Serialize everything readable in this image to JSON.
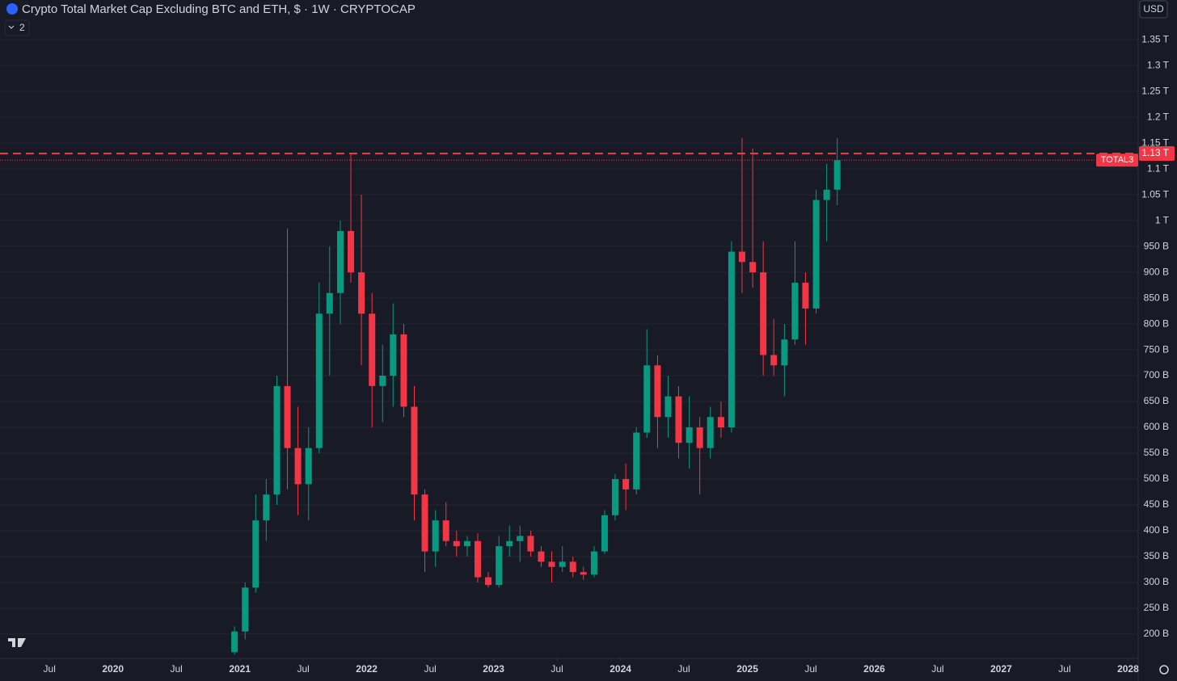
{
  "chart_data": {
    "type": "candlestick",
    "title": "Crypto Total Market Cap Excluding BTC and ETH, $ · 1W · CRYPTOCAP",
    "currency": "USD",
    "collapsed_count": 2,
    "symbol": "TOTAL3",
    "up_color": "#089981",
    "down_color": "#f23645",
    "x": [
      2020.958,
      2021.042,
      2021.125,
      2021.208,
      2021.292,
      2021.375,
      2021.458,
      2021.542,
      2021.625,
      2021.708,
      2021.792,
      2021.875,
      2021.958,
      2022.042,
      2022.125,
      2022.208,
      2022.292,
      2022.375,
      2022.458,
      2022.542,
      2022.625,
      2022.708,
      2022.792,
      2022.875,
      2022.958,
      2023.042,
      2023.125,
      2023.208,
      2023.292,
      2023.375,
      2023.458,
      2023.542,
      2023.625,
      2023.708,
      2023.792,
      2023.875,
      2023.958,
      2024.042,
      2024.125,
      2024.208,
      2024.292,
      2024.375,
      2024.458,
      2024.542,
      2024.625,
      2024.708,
      2024.792,
      2024.875,
      2024.958,
      2025.042,
      2025.125,
      2025.208,
      2025.292,
      2025.375,
      2025.458,
      2025.542,
      2025.625,
      2025.708
    ],
    "open": [
      165,
      205,
      290,
      420,
      470,
      680,
      560,
      490,
      560,
      820,
      860,
      980,
      900,
      820,
      680,
      700,
      780,
      640,
      470,
      360,
      420,
      380,
      370,
      380,
      310,
      295,
      370,
      380,
      390,
      360,
      340,
      330,
      340,
      320,
      315,
      360,
      430,
      500,
      480,
      590,
      720,
      620,
      660,
      570,
      600,
      560,
      620,
      600,
      940,
      920,
      900,
      740,
      720,
      770,
      880,
      830,
      1040,
      1060
    ],
    "high": [
      215,
      300,
      470,
      500,
      700,
      985,
      640,
      600,
      880,
      950,
      1000,
      1130,
      1050,
      860,
      760,
      840,
      800,
      680,
      480,
      440,
      455,
      400,
      390,
      395,
      320,
      390,
      410,
      410,
      400,
      370,
      360,
      370,
      350,
      330,
      370,
      440,
      510,
      530,
      600,
      790,
      740,
      700,
      680,
      660,
      620,
      640,
      650,
      960,
      1160,
      1140,
      960,
      810,
      800,
      960,
      900,
      1060,
      1110,
      1160
    ],
    "low": [
      160,
      190,
      280,
      380,
      450,
      480,
      430,
      420,
      550,
      700,
      800,
      880,
      720,
      600,
      610,
      640,
      620,
      420,
      320,
      330,
      370,
      350,
      350,
      300,
      290,
      290,
      350,
      340,
      350,
      330,
      300,
      320,
      310,
      305,
      310,
      355,
      420,
      440,
      470,
      580,
      560,
      580,
      540,
      520,
      470,
      540,
      580,
      590,
      860,
      870,
      700,
      700,
      660,
      760,
      760,
      820,
      960,
      1030
    ],
    "close": [
      205,
      290,
      420,
      470,
      680,
      560,
      490,
      560,
      820,
      860,
      980,
      900,
      820,
      680,
      700,
      780,
      640,
      470,
      360,
      420,
      380,
      370,
      380,
      310,
      295,
      370,
      380,
      390,
      360,
      340,
      330,
      340,
      320,
      315,
      360,
      430,
      500,
      480,
      590,
      720,
      620,
      660,
      570,
      600,
      560,
      620,
      600,
      940,
      920,
      900,
      740,
      720,
      770,
      880,
      830,
      1040,
      1060,
      1117
    ],
    "hline": {
      "value": 1130,
      "label": "1.13 T",
      "color": "#f23645"
    },
    "xlim": [
      2019.11,
      2028.08
    ],
    "ylim": [
      153,
      1427
    ],
    "xticks": [
      {
        "value": 2019.5,
        "label": "Jul"
      },
      2020,
      {
        "value": 2020.5,
        "label": "Jul"
      },
      2021,
      {
        "value": 2021.5,
        "label": "Jul"
      },
      2022,
      {
        "value": 2022.5,
        "label": "Jul"
      },
      2023,
      {
        "value": 2023.5,
        "label": "Jul"
      },
      2024,
      {
        "value": 2024.5,
        "label": "Jul"
      },
      2025,
      {
        "value": 2025.5,
        "label": "Jul"
      },
      2026,
      {
        "value": 2026.5,
        "label": "Jul"
      },
      2027,
      {
        "value": 2027.5,
        "label": "Jul"
      },
      2028
    ],
    "yticks": [
      {
        "value": 200,
        "label": "200 B"
      },
      {
        "value": 250,
        "label": "250 B"
      },
      {
        "value": 300,
        "label": "300 B"
      },
      {
        "value": 350,
        "label": "350 B"
      },
      {
        "value": 400,
        "label": "400 B"
      },
      {
        "value": 450,
        "label": "450 B"
      },
      {
        "value": 500,
        "label": "500 B"
      },
      {
        "value": 550,
        "label": "550 B"
      },
      {
        "value": 600,
        "label": "600 B"
      },
      {
        "value": 650,
        "label": "650 B"
      },
      {
        "value": 700,
        "label": "700 B"
      },
      {
        "value": 750,
        "label": "750 B"
      },
      {
        "value": 800,
        "label": "800 B"
      },
      {
        "value": 850,
        "label": "850 B"
      },
      {
        "value": 900,
        "label": "900 B"
      },
      {
        "value": 950,
        "label": "950 B"
      },
      {
        "value": 1000,
        "label": "1 T"
      },
      {
        "value": 1050,
        "label": "1.05 T"
      },
      {
        "value": 1100,
        "label": "1.1 T"
      },
      {
        "value": 1150,
        "label": "1.15 T"
      },
      {
        "value": 1200,
        "label": "1.2 T"
      },
      {
        "value": 1250,
        "label": "1.25 T"
      },
      {
        "value": 1300,
        "label": "1.3 T"
      },
      {
        "value": 1350,
        "label": "1.35 T"
      }
    ],
    "grid": true
  }
}
